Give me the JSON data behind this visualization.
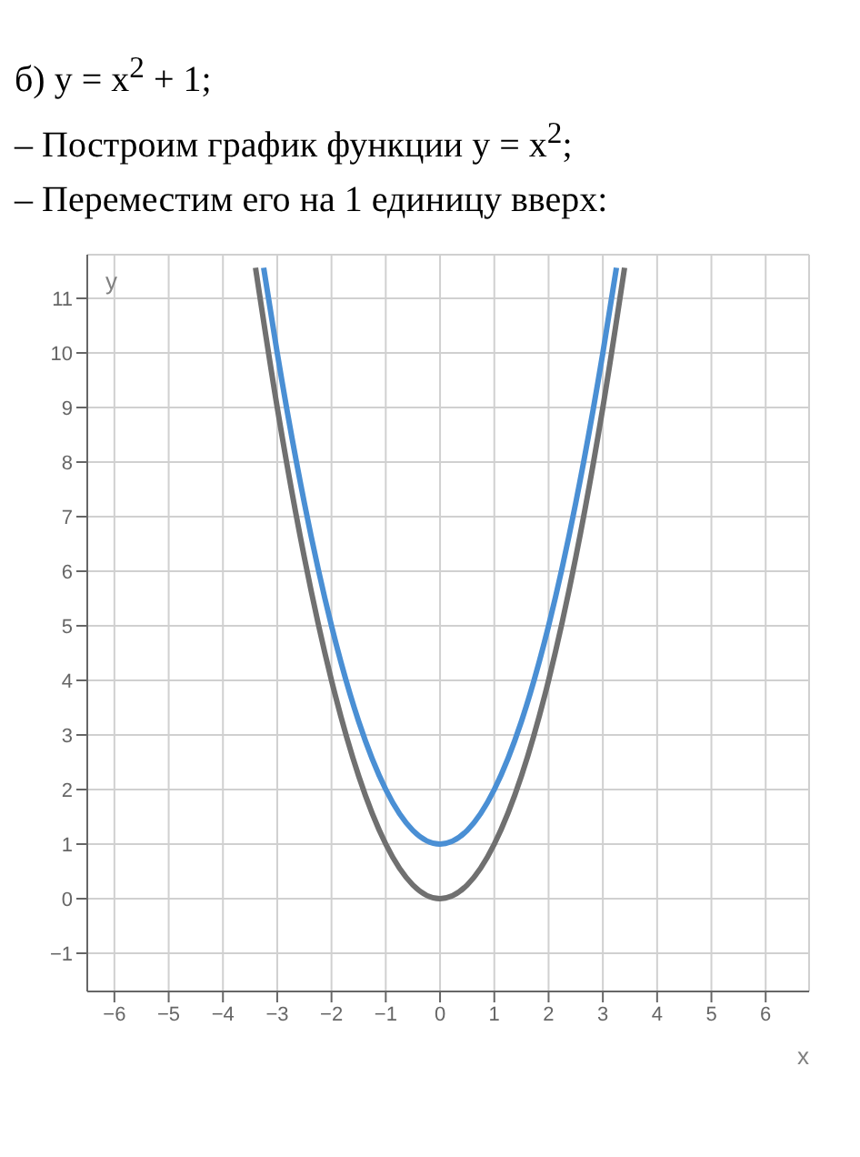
{
  "chart_data": {
    "type": "line",
    "title": "б) y = x$^{2}$ + 1;",
    "annotations": [
      "– Построим график функции y = x$^{2}$;",
      "– Переместим его на 1 единицу вверх:"
    ],
    "xlabel": "x",
    "ylabel": "y",
    "xlim": [
      -6.5,
      6.8
    ],
    "ylim": [
      -1.7,
      11.8
    ],
    "xticks": [
      -6,
      -5,
      -4,
      -3,
      -2,
      -1,
      0,
      1,
      2,
      3,
      4,
      5,
      6
    ],
    "yticks": [
      -1,
      0,
      1,
      2,
      3,
      4,
      5,
      6,
      7,
      8,
      9,
      10,
      11
    ],
    "grid": true,
    "marker": "none",
    "line_style": "solid",
    "series": [
      {
        "color": "#707070",
        "x": [
          -3.4,
          -3,
          -2.5,
          -2,
          -1.5,
          -1,
          -0.5,
          0,
          0.5,
          1,
          1.5,
          2,
          2.5,
          3,
          3.4
        ],
        "values": [
          11.56,
          9,
          6.25,
          4,
          2.25,
          1,
          0.25,
          0,
          0.25,
          1,
          2.25,
          4,
          6.25,
          9,
          11.56
        ]
      },
      {
        "color": "#4a8fd4",
        "x": [
          -3.25,
          -3,
          -2.5,
          -2,
          -1.5,
          -1,
          -0.5,
          0,
          0.5,
          1,
          1.5,
          2,
          2.5,
          3,
          3.25
        ],
        "values": [
          11.56,
          10,
          7.25,
          5,
          3.25,
          2,
          1.25,
          1,
          1.25,
          2,
          3.25,
          5,
          7.25,
          10,
          11.56
        ]
      }
    ]
  }
}
